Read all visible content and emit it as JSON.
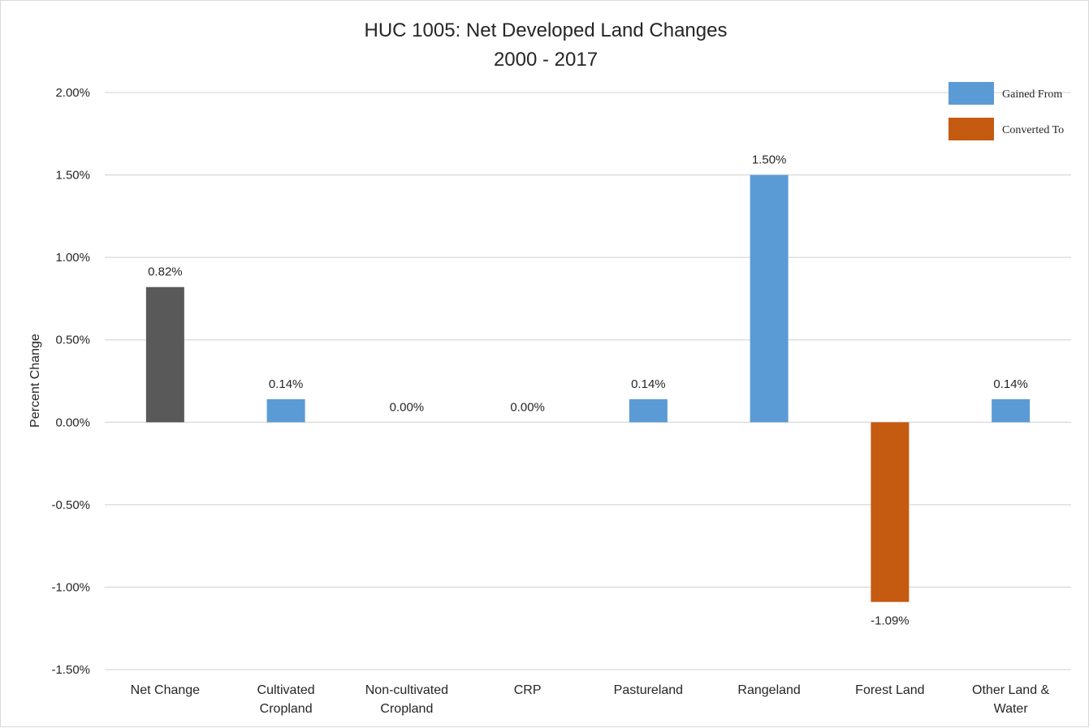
{
  "chart_data": {
    "type": "bar",
    "title": [
      "HUC 1005: Net Developed Land Changes",
      "2000 - 2017"
    ],
    "xlabel": "",
    "ylabel": "Percent Change",
    "ylim": [
      -1.5,
      2.0
    ],
    "ytick_step": 0.5,
    "ytick_labels": [
      "-1.50%",
      "-1.00%",
      "-0.50%",
      "0.00%",
      "0.50%",
      "1.00%",
      "1.50%",
      "2.00%"
    ],
    "grid": true,
    "legend_position": "top-right",
    "legend": [
      {
        "label": "Gained From",
        "color": "#5b9bd5"
      },
      {
        "label": "Converted To",
        "color": "#c55a11"
      }
    ],
    "categories": [
      [
        "Net Change"
      ],
      [
        "Cultivated",
        "Cropland"
      ],
      [
        "Non-cultivated",
        "Cropland"
      ],
      [
        "CRP"
      ],
      [
        "Pastureland"
      ],
      [
        "Rangeland"
      ],
      [
        "Forest Land"
      ],
      [
        "Other Land &",
        "Water"
      ]
    ],
    "values": [
      0.82,
      0.14,
      0.0,
      0.0,
      0.14,
      1.5,
      -1.09,
      0.14
    ],
    "data_labels": [
      "0.82%",
      "0.14%",
      "0.00%",
      "0.00%",
      "0.14%",
      "1.50%",
      "-1.09%",
      "0.14%"
    ],
    "bar_colors": [
      "#595959",
      "#5b9bd5",
      "#5b9bd5",
      "#5b9bd5",
      "#5b9bd5",
      "#5b9bd5",
      "#c55a11",
      "#5b9bd5"
    ]
  }
}
